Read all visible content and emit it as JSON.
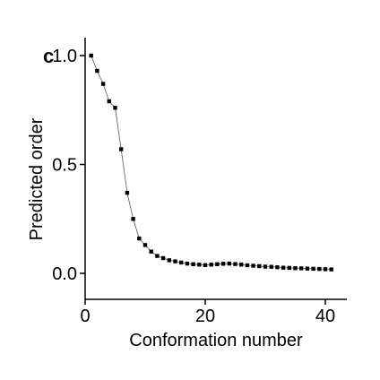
{
  "chart_data": {
    "type": "scatter",
    "panel_label": "c",
    "title": "",
    "xlabel": "Conformation number",
    "ylabel": "Predicted order",
    "xlim": [
      0,
      42
    ],
    "ylim": [
      0,
      1.05
    ],
    "xticks": [
      0,
      20,
      40
    ],
    "yticks": [
      0.0,
      0.5,
      1.0
    ],
    "xtick_labels": [
      "0",
      "20",
      "40"
    ],
    "ytick_labels": [
      "0.0",
      "0.5",
      "1.0"
    ],
    "grid": false,
    "legend": "none",
    "connected": true,
    "marker_color": "#000000",
    "line_color": "#555555",
    "x": [
      1,
      2,
      3,
      4,
      5,
      6,
      7,
      8,
      9,
      10,
      11,
      12,
      13,
      14,
      15,
      16,
      17,
      18,
      19,
      20,
      21,
      22,
      23,
      24,
      25,
      26,
      27,
      28,
      29,
      30,
      31,
      32,
      33,
      34,
      35,
      36,
      37,
      38,
      39,
      40,
      41
    ],
    "y": [
      1.0,
      0.93,
      0.87,
      0.79,
      0.76,
      0.57,
      0.37,
      0.25,
      0.16,
      0.13,
      0.1,
      0.08,
      0.07,
      0.06,
      0.055,
      0.05,
      0.045,
      0.042,
      0.04,
      0.038,
      0.04,
      0.042,
      0.044,
      0.045,
      0.043,
      0.04,
      0.037,
      0.035,
      0.033,
      0.031,
      0.03,
      0.028,
      0.026,
      0.025,
      0.024,
      0.023,
      0.022,
      0.021,
      0.02,
      0.019,
      0.018
    ]
  }
}
